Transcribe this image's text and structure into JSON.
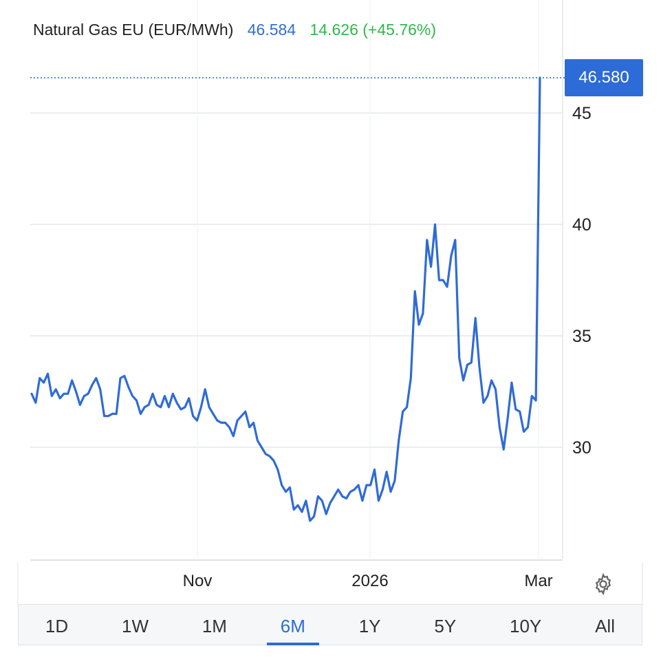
{
  "legend": {
    "name": "Natural Gas EU (EUR/MWh)",
    "price": "46.584",
    "change": "14.626 (+45.76%)"
  },
  "price_tag": "46.580",
  "ranges": [
    "1D",
    "1W",
    "1M",
    "6M",
    "1Y",
    "5Y",
    "10Y",
    "All"
  ],
  "active_range": "6M",
  "colors": {
    "line": "#2f6bd6",
    "tag": "#2d6bd6",
    "change": "#2fb84a",
    "grid": "#e3e6ea"
  },
  "icons": {
    "settings": "gear-icon"
  },
  "chart_data": {
    "type": "line",
    "series": [
      {
        "values": [
          32.4,
          32.0,
          33.1,
          32.9,
          33.3,
          32.3,
          32.6,
          32.2,
          32.4,
          32.4,
          33.0,
          32.5,
          31.9,
          32.3,
          32.4,
          32.8,
          33.1,
          32.6,
          31.4,
          31.4,
          31.5,
          31.5,
          33.1,
          33.2,
          32.7,
          32.3,
          32.1,
          31.5,
          31.8,
          31.9,
          32.4,
          31.9,
          31.8,
          32.3,
          31.8,
          32.4,
          32.0,
          31.7,
          31.8,
          32.2,
          31.4,
          31.2,
          31.8,
          32.6,
          31.8,
          31.5,
          31.2,
          31.1,
          31.1,
          30.9,
          30.5,
          31.2,
          31.4,
          31.6,
          30.9,
          31.1,
          30.3,
          30.0,
          29.7,
          29.6,
          29.4,
          29.0,
          28.3,
          28.0,
          28.2,
          27.2,
          27.4,
          27.1,
          27.6,
          26.7,
          26.9,
          27.8,
          27.6,
          27.0,
          27.5,
          27.8,
          28.1,
          27.8,
          27.7,
          28.0,
          28.1,
          28.3,
          27.6,
          28.3,
          28.3,
          29.0,
          27.6,
          28.1,
          28.9,
          28.0,
          28.5,
          30.3,
          31.6,
          31.8,
          33.1,
          37.0,
          35.5,
          36.0,
          39.3,
          38.1,
          40.0,
          37.5,
          37.5,
          37.2,
          38.6,
          39.3,
          34.0,
          33.0,
          33.7,
          33.8,
          35.8,
          33.6,
          32.0,
          32.3,
          33.0,
          32.6,
          30.9,
          29.9,
          31.3,
          32.9,
          31.7,
          31.6,
          30.7,
          30.9,
          32.3,
          32.1,
          46.58
        ]
      }
    ],
    "x_ticks": [
      "Nov",
      "2026",
      "Mar"
    ],
    "y_ticks": [
      30,
      35,
      40,
      45
    ],
    "ylim": [
      25.0,
      47.6
    ],
    "last_value": 46.58,
    "grid": true
  }
}
